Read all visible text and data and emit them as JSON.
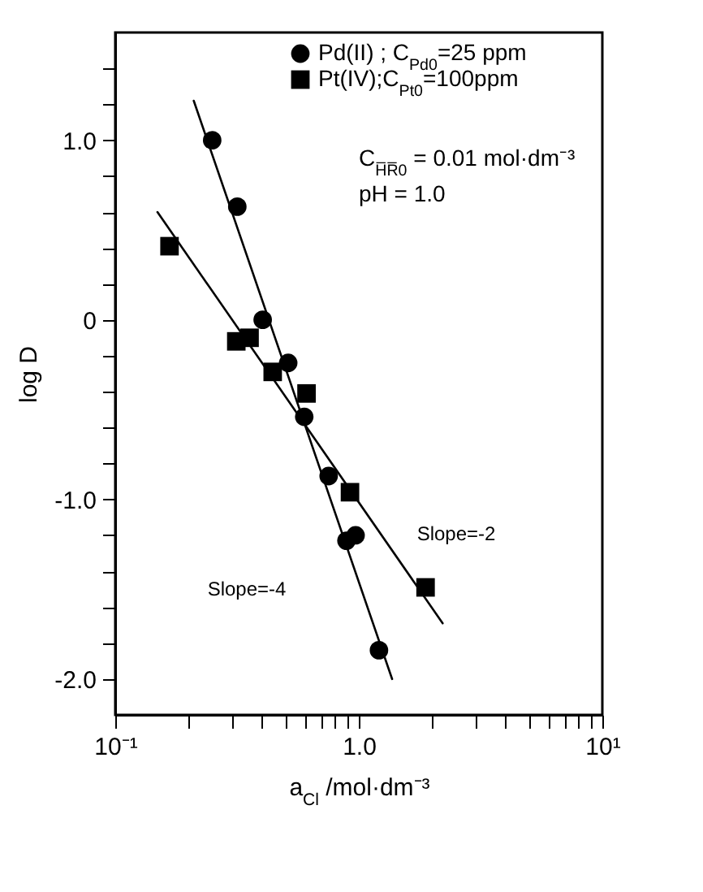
{
  "chart_data": {
    "type": "scatter",
    "xlabel": "a$_{Cl}$ /mol·dm⁻³",
    "ylabel": "log D",
    "log": "x",
    "grid": false,
    "legend": "top right",
    "xlim": [
      0.1,
      10
    ],
    "ylim": [
      -2.2,
      1.6
    ],
    "xticks": [
      {
        "value": 0.1,
        "label": "10⁻¹"
      },
      {
        "value": 0.2,
        "label": null
      },
      {
        "value": 0.3,
        "label": null
      },
      {
        "value": 0.4,
        "label": null
      },
      {
        "value": 0.5,
        "label": null
      },
      {
        "value": 0.6,
        "label": null
      },
      {
        "value": 0.7,
        "label": null
      },
      {
        "value": 0.8,
        "label": null
      },
      {
        "value": 0.9,
        "label": null
      },
      {
        "value": 1,
        "label": "1.0"
      },
      {
        "value": 2,
        "label": null
      },
      {
        "value": 3,
        "label": null
      },
      {
        "value": 4,
        "label": null
      },
      {
        "value": 5,
        "label": null
      },
      {
        "value": 6,
        "label": null
      },
      {
        "value": 7,
        "label": null
      },
      {
        "value": 8,
        "label": null
      },
      {
        "value": 9,
        "label": null
      },
      {
        "value": 10,
        "label": "10¹"
      }
    ],
    "yticks": [
      {
        "value": -2,
        "label": "-2.0"
      },
      {
        "value": -1.8,
        "label": null
      },
      {
        "value": -1.6,
        "label": null
      },
      {
        "value": -1.4,
        "label": null
      },
      {
        "value": -1.2,
        "label": null
      },
      {
        "value": -1,
        "label": "-1.0"
      },
      {
        "value": -0.8,
        "label": null
      },
      {
        "value": -0.6,
        "label": null
      },
      {
        "value": -0.4,
        "label": null
      },
      {
        "value": -0.2,
        "label": null
      },
      0,
      {
        "value": 0.2,
        "label": null
      },
      {
        "value": 0.4,
        "label": null
      },
      {
        "value": 0.6,
        "label": null
      },
      {
        "value": 0.8,
        "label": null
      },
      {
        "value": 1,
        "label": "1.0"
      },
      {
        "value": 1.2,
        "label": null
      },
      {
        "value": 1.4,
        "label": null
      }
    ],
    "series": [
      {
        "name": "Pd(II) ; C$_{Pd0}$=25 ppm",
        "color": "#000000",
        "marker": "circle",
        "x": [
          0.25,
          0.317,
          0.403,
          0.513,
          0.597,
          0.752,
          0.89,
          0.97,
          1.21
        ],
        "values": [
          1.0,
          0.63,
          0.0,
          -0.24,
          -0.54,
          -0.87,
          -1.23,
          -1.2,
          -1.84
        ]
      },
      {
        "name": "Pt(IV);C$_{Pt0}$=100ppm",
        "color": "#000000",
        "marker": "square",
        "x": [
          0.167,
          0.314,
          0.356,
          0.443,
          0.61,
          0.92,
          1.88
        ],
        "values": [
          0.41,
          -0.12,
          -0.1,
          -0.29,
          -0.41,
          -0.96,
          -1.49
        ]
      },
      {
        "type": "line",
        "color": "#000000",
        "x": [
          0.21,
          1.37
        ],
        "values": [
          1.22,
          -2.0
        ]
      },
      {
        "type": "line",
        "color": "#000000",
        "x": [
          0.149,
          2.21
        ],
        "values": [
          0.6,
          -1.69
        ]
      }
    ],
    "annotations": [
      "C$_{H̅R̅0}$ = 0.01 mol·dm⁻³",
      "pH = 1.0",
      "Slope=-2",
      "Slope=-4"
    ]
  }
}
